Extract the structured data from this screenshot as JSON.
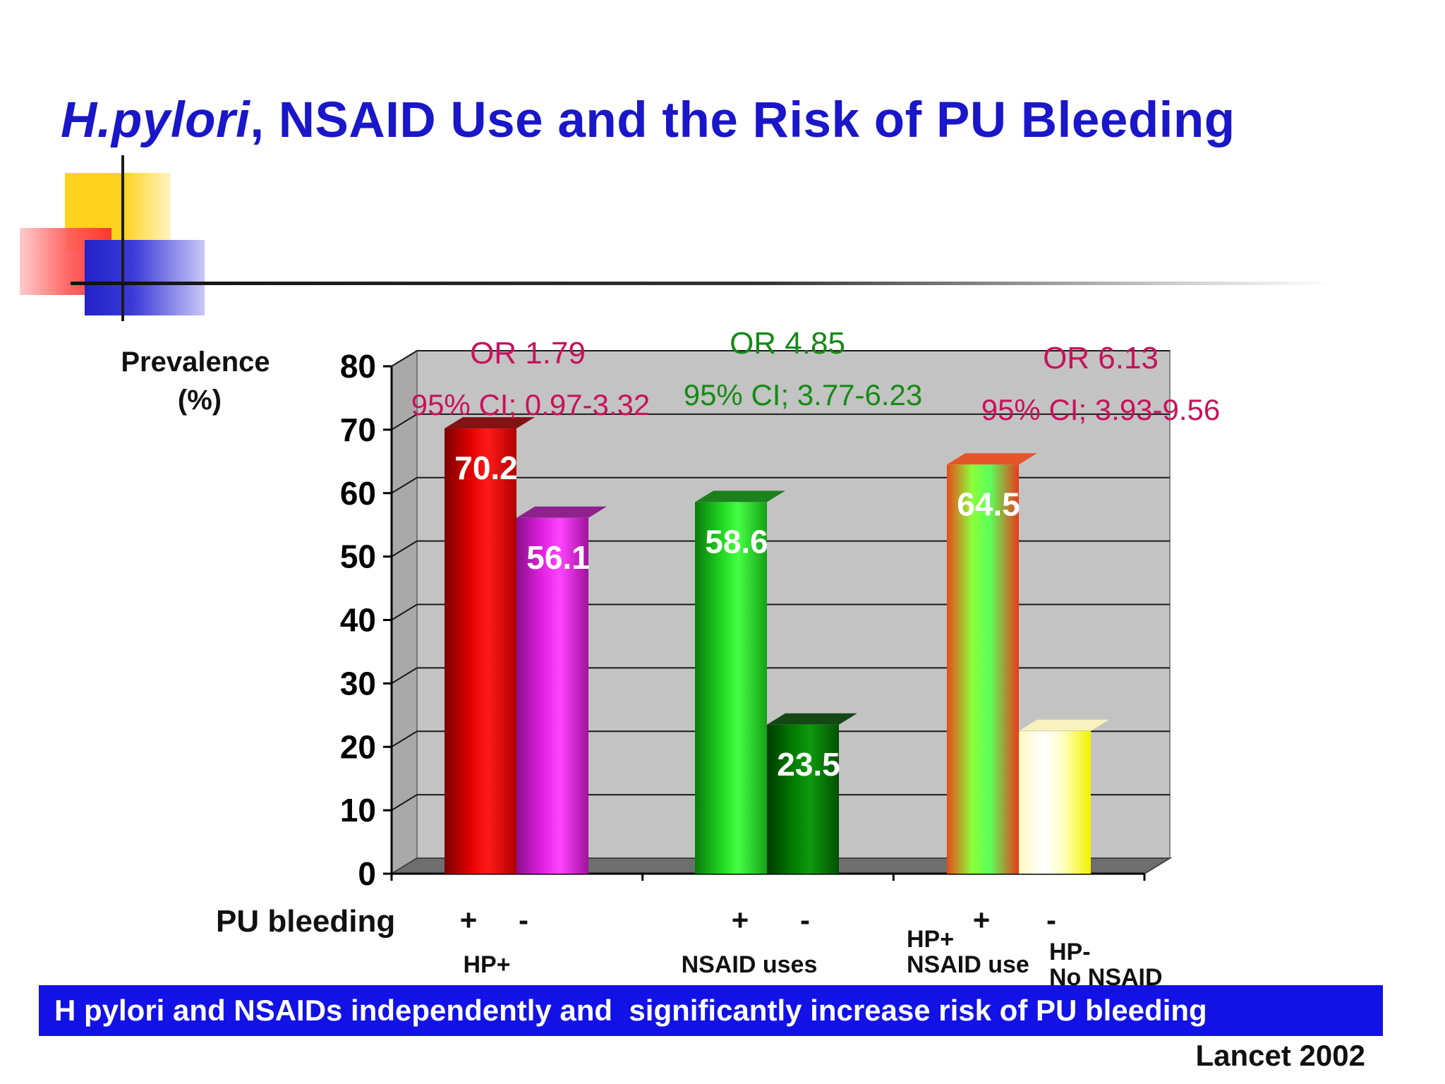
{
  "slide": {
    "title_italic": "H.pylori",
    "title_rest": ", NSAID Use and the Risk of PU Bleeding",
    "conclusion": "H pylori and NSAIDs independently and  significantly increase risk of PU bleeding",
    "source": "Lancet 2002"
  },
  "chart_data": {
    "type": "bar",
    "ylabel": "Prevalence",
    "ylabel_unit": "(%)",
    "xlabel": "PU bleeding",
    "ylim": [
      0,
      80
    ],
    "yticks": [
      "0",
      "10",
      "20",
      "30",
      "40",
      "50",
      "60",
      "70",
      "80"
    ],
    "grid": true,
    "groups": [
      {
        "name": "HP+",
        "or_label": "OR 1.79",
        "ci_label": "95% CI; 0.97-3.32",
        "label_color": "#c8125c",
        "bars": [
          {
            "sign": "+",
            "value": 70.2,
            "value_label": "70.2",
            "colors": [
              "#7a0000",
              "#e00000",
              "#ff1a1a",
              "#b00000"
            ]
          },
          {
            "sign": "-",
            "value": 56.1,
            "value_label": "56.1",
            "colors": [
              "#8a0f8a",
              "#e020e0",
              "#ff44ff",
              "#a011a0"
            ]
          }
        ]
      },
      {
        "name": "NSAID uses",
        "or_label": "OR 4.85",
        "ci_label": "95% CI; 3.77-6.23",
        "label_color": "#168a16",
        "bars": [
          {
            "sign": "+",
            "value": 58.6,
            "value_label": "58.6",
            "colors": [
              "#0a7a0a",
              "#1fd21f",
              "#44ff44",
              "#16a016"
            ]
          },
          {
            "sign": "-",
            "value": 23.5,
            "value_label": "23.5",
            "colors": [
              "#003a00",
              "#007a00",
              "#0e9a0e",
              "#005000"
            ]
          }
        ]
      },
      {
        "name": "HP+\nNSAID use",
        "name_lines": [
          "HP+",
          "NSAID use"
        ],
        "or_label": "OR 6.13",
        "ci_label": "95% CI; 3.93-9.56",
        "label_color": "#c8125c",
        "bars": [
          {
            "sign": "+",
            "value": 64.5,
            "value_label": "64.5",
            "colors": [
              "#e84a1a",
              "#8cff3a",
              "#5aff5a",
              "#e83a1a"
            ]
          },
          {
            "sign": "-",
            "value": 22.5,
            "value_label": "",
            "label": "HP-\nNo NSAID",
            "label_lines": [
              "HP-",
              "No NSAID"
            ],
            "colors": [
              "#fff7c0",
              "#ffffff",
              "#ffffc8",
              "#f2f200"
            ]
          }
        ]
      }
    ]
  }
}
